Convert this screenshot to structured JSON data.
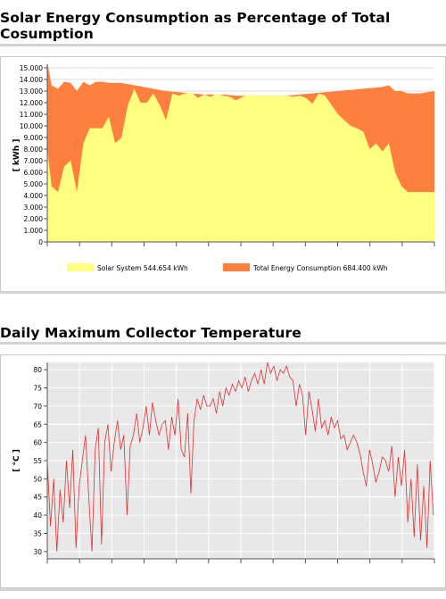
{
  "section1": {
    "title_line1": "Solar Energy Consumption as Percentage of Total",
    "title_line2": "Cosumption"
  },
  "section2": {
    "title": "Daily Maximum Collector Temperature"
  },
  "colors": {
    "solar": "#ffff80",
    "total": "#ff7f3f",
    "temperature": "#e03030",
    "plot_bg_temp": "#e8e8e8"
  },
  "chart_data": [
    {
      "type": "area",
      "ylabel": "[ kWh ]",
      "ylim": [
        0,
        15
      ],
      "yticks": [
        "0",
        "1.000",
        "2.000",
        "3.000",
        "4.000",
        "5.000",
        "6.000",
        "7.000",
        "8.000",
        "9.000",
        "10.000",
        "11.000",
        "12.000",
        "13.000",
        "14.000",
        "15.000"
      ],
      "grid": true,
      "legend_position": "bottom",
      "x": [
        0,
        4,
        10,
        16,
        22,
        28,
        34,
        40,
        46,
        52,
        58,
        64,
        70,
        76,
        82,
        88,
        94,
        100,
        106,
        112,
        118,
        124,
        130,
        136,
        142,
        148,
        154,
        160,
        166,
        172,
        178,
        184,
        190,
        196,
        202,
        208,
        214,
        220,
        226,
        232,
        238,
        244,
        250,
        256,
        262,
        268,
        274,
        280,
        286,
        292,
        298,
        304,
        310,
        316,
        322,
        328,
        334,
        340,
        346,
        352,
        358,
        365
      ],
      "series": [
        {
          "name": "Solar System",
          "legend": "Solar System 544.654 kWh",
          "values": [
            8.0,
            4.8,
            4.3,
            6.5,
            7.0,
            4.3,
            8.5,
            9.8,
            9.8,
            9.8,
            10.8,
            8.5,
            9.0,
            11.8,
            13.2,
            12.0,
            12.0,
            12.8,
            11.8,
            10.5,
            12.8,
            12.6,
            12.8,
            12.9,
            12.4,
            12.7,
            12.5,
            12.8,
            12.6,
            12.5,
            12.2,
            12.5,
            12.7,
            12.6,
            12.6,
            12.6,
            12.6,
            12.6,
            12.6,
            12.5,
            12.6,
            12.4,
            11.9,
            12.8,
            12.6,
            11.8,
            11.0,
            10.5,
            10.0,
            9.8,
            9.5,
            8.0,
            8.5,
            7.8,
            8.5,
            6.0,
            4.8,
            4.3,
            4.3,
            4.3,
            4.3,
            4.3
          ]
        },
        {
          "name": "Total Energy Consumption",
          "legend": "Total Energy Consumption 684.400 kWh",
          "values": [
            15.5,
            13.5,
            13.2,
            13.8,
            13.7,
            13.0,
            13.8,
            13.5,
            13.8,
            13.8,
            13.7,
            13.7,
            13.7,
            13.6,
            13.5,
            13.4,
            13.3,
            13.2,
            13.1,
            13.0,
            12.95,
            12.9,
            12.85,
            12.8,
            12.75,
            12.7,
            12.7,
            12.7,
            12.7,
            12.65,
            12.6,
            12.6,
            12.6,
            12.6,
            12.6,
            12.6,
            12.6,
            12.6,
            12.6,
            12.65,
            12.7,
            12.75,
            12.8,
            12.85,
            12.9,
            12.95,
            13.0,
            13.05,
            13.1,
            13.15,
            13.2,
            13.25,
            13.3,
            13.35,
            13.5,
            13.0,
            13.0,
            12.8,
            12.8,
            12.8,
            12.9,
            13.0
          ]
        }
      ]
    },
    {
      "type": "line",
      "ylabel": "[ °C ]",
      "ylim": [
        28,
        82
      ],
      "yticks": [
        "30",
        "35",
        "40",
        "45",
        "50",
        "55",
        "60",
        "65",
        "70",
        "75",
        "80"
      ],
      "grid": true,
      "x": [
        1,
        4,
        7,
        10,
        13,
        16,
        19,
        22,
        25,
        28,
        31,
        34,
        37,
        40,
        43,
        46,
        49,
        52,
        55,
        58,
        61,
        64,
        67,
        70,
        73,
        76,
        79,
        82,
        85,
        88,
        91,
        94,
        97,
        100,
        103,
        106,
        109,
        112,
        115,
        118,
        121,
        124,
        127,
        130,
        133,
        136,
        139,
        142,
        145,
        148,
        151,
        154,
        157,
        160,
        163,
        166,
        169,
        172,
        175,
        178,
        181,
        184,
        187,
        190,
        193,
        196,
        199,
        202,
        205,
        208,
        211,
        214,
        217,
        220,
        223,
        226,
        229,
        232,
        235,
        238,
        241,
        244,
        247,
        250,
        253,
        256,
        259,
        262,
        265,
        268,
        271,
        274,
        277,
        280,
        283,
        286,
        289,
        292,
        295,
        298,
        301,
        304,
        307,
        310,
        313,
        316,
        319,
        322,
        325,
        328,
        331,
        334,
        337,
        340,
        343,
        346,
        349,
        352,
        355,
        358,
        361,
        364
      ],
      "series": [
        {
          "name": "Collector Temperature",
          "values": [
            55,
            37,
            50,
            30,
            47,
            38,
            55,
            42,
            58,
            31,
            48,
            55,
            62,
            45,
            30,
            58,
            64,
            32,
            60,
            65,
            52,
            60,
            66,
            58,
            62,
            40,
            59,
            62,
            68,
            60,
            64,
            70,
            62,
            71,
            66,
            62,
            65,
            66,
            58,
            67,
            62,
            72,
            58,
            56,
            68,
            46,
            66,
            72,
            69,
            73,
            70,
            70,
            72,
            68,
            74,
            70,
            75,
            73,
            76,
            74,
            77,
            75,
            78,
            74,
            77,
            79,
            76,
            80,
            76,
            82,
            79,
            81,
            77,
            80,
            79,
            81,
            78,
            77,
            70,
            76,
            73,
            62,
            74,
            69,
            63,
            72,
            64,
            66,
            62,
            67,
            64,
            66,
            61,
            62,
            58,
            60,
            62,
            60,
            57,
            52,
            48,
            58,
            54,
            49,
            52,
            56,
            55,
            52,
            59,
            45,
            56,
            48,
            58,
            38,
            50,
            34,
            54,
            33,
            48,
            31,
            55,
            40
          ]
        }
      ]
    }
  ]
}
